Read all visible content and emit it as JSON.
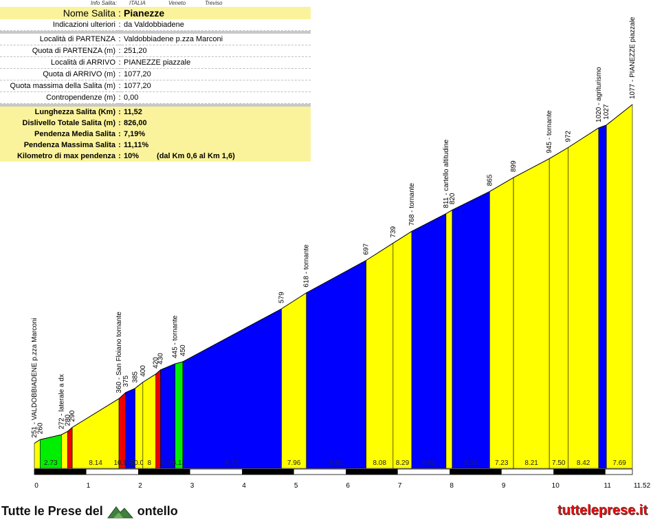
{
  "info_header": {
    "label": "Info Salita:",
    "country": "ITALIA",
    "region": "Veneto",
    "province": "Treviso"
  },
  "info_rows": [
    {
      "label": "Nome Salita",
      "value": "Pianezze",
      "style": "title"
    },
    {
      "label": "Indicazioni ulteriori",
      "value": "da Valdobbiadene",
      "style": "plain"
    },
    {
      "label": "Località di PARTENZA",
      "value": "Valdobbiadene p.zza Marconi",
      "style": "plain"
    },
    {
      "label": "Quota di PARTENZA (m)",
      "value": "251,20",
      "style": "plain"
    },
    {
      "label": "Località di ARRIVO",
      "value": "PIANEZZE piazzale",
      "style": "plain"
    },
    {
      "label": "Quota di ARRIVO (m)",
      "value": "1077,20",
      "style": "plain"
    },
    {
      "label": "Quota massima della Salita (m)",
      "value": "1077,20",
      "style": "plain"
    },
    {
      "label": "Contropendenze (m)",
      "value": "0,00",
      "style": "plain"
    },
    {
      "label": "Lunghezza Salita (Km)",
      "value": "11,52",
      "style": "yellow"
    },
    {
      "label": "Dislivello Totale Salita (m)",
      "value": "826,00",
      "style": "yellow"
    },
    {
      "label": "Pendenza Media Salita",
      "value": "7,19%",
      "style": "yellow"
    },
    {
      "label": "Pendenza Massima Salita",
      "value": "11,11%",
      "style": "yellow"
    },
    {
      "label": "Kilometro di max pendenza",
      "value": "10%",
      "extra": "(dal Km 0,6 al Km 1,6)",
      "style": "yellow"
    }
  ],
  "chart_data": {
    "type": "area",
    "xlabel": "",
    "ylabel": "",
    "xlim": [
      0,
      11.52
    ],
    "x_ticks": [
      "0",
      "1",
      "2",
      "3",
      "4",
      "5",
      "6",
      "7",
      "8",
      "9",
      "10",
      "11",
      "11.52"
    ],
    "slope_colors": {
      "green": "#00ee00",
      "yellow": "#ffff00",
      "blue": "#0000ff",
      "red": "#ee0000"
    },
    "profile": [
      {
        "km": 0.0,
        "alt": 251
      },
      {
        "km": 0.11,
        "alt": 260
      },
      {
        "km": 0.52,
        "alt": 272
      },
      {
        "km": 0.64,
        "alt": 280
      },
      {
        "km": 0.73,
        "alt": 290
      },
      {
        "km": 1.63,
        "alt": 360
      },
      {
        "km": 1.76,
        "alt": 375
      },
      {
        "km": 1.94,
        "alt": 385
      },
      {
        "km": 2.09,
        "alt": 400
      },
      {
        "km": 2.34,
        "alt": 420
      },
      {
        "km": 2.43,
        "alt": 430
      },
      {
        "km": 2.71,
        "alt": 445
      },
      {
        "km": 2.86,
        "alt": 450
      },
      {
        "km": 4.76,
        "alt": 579
      },
      {
        "km": 5.24,
        "alt": 618
      },
      {
        "km": 6.39,
        "alt": 697
      },
      {
        "km": 6.91,
        "alt": 739
      },
      {
        "km": 7.27,
        "alt": 768
      },
      {
        "km": 7.93,
        "alt": 811
      },
      {
        "km": 8.05,
        "alt": 820
      },
      {
        "km": 8.77,
        "alt": 865
      },
      {
        "km": 9.23,
        "alt": 899
      },
      {
        "km": 9.92,
        "alt": 945
      },
      {
        "km": 10.28,
        "alt": 972
      },
      {
        "km": 10.87,
        "alt": 1020
      },
      {
        "km": 11.02,
        "alt": 1027
      },
      {
        "km": 11.52,
        "alt": 1077
      }
    ],
    "segments": [
      {
        "color": "yellow",
        "grade": ""
      },
      {
        "color": "green",
        "grade": "2.73"
      },
      {
        "color": "yellow",
        "grade": ""
      },
      {
        "color": "red",
        "grade": ""
      },
      {
        "color": "yellow",
        "grade": "8.14"
      },
      {
        "color": "red",
        "grade": "10.71"
      },
      {
        "color": "blue",
        "grade": "5.88"
      },
      {
        "color": "yellow",
        "grade": "10.00"
      },
      {
        "color": "yellow",
        "grade": "8"
      },
      {
        "color": "red",
        "grade": ""
      },
      {
        "color": "blue",
        "grade": "5.36"
      },
      {
        "color": "green",
        "grade": "3.13"
      },
      {
        "color": "blue",
        "grade": "6.72"
      },
      {
        "color": "yellow",
        "grade": "7.96"
      },
      {
        "color": "blue",
        "grade": "6.92"
      },
      {
        "color": "yellow",
        "grade": "8.08"
      },
      {
        "color": "yellow",
        "grade": "8.29"
      },
      {
        "color": "blue",
        "grade": "6.62"
      },
      {
        "color": "yellow",
        "grade": ""
      },
      {
        "color": "blue",
        "grade": "6.34"
      },
      {
        "color": "yellow",
        "grade": "7.23"
      },
      {
        "color": "yellow",
        "grade": "8.21"
      },
      {
        "color": "yellow",
        "grade": "7.50"
      },
      {
        "color": "yellow",
        "grade": "8.42"
      },
      {
        "color": "blue",
        "grade": ""
      },
      {
        "color": "yellow",
        "grade": "7.69"
      }
    ],
    "point_labels": [
      "251 - VALDOBBIADENE p.zza Marconi",
      "260",
      "272 - laterale a dx",
      "280",
      "290",
      "360 - San Floiano tornante",
      "375",
      "385",
      "400",
      "420",
      "430",
      "445 - tornante",
      "450",
      "579",
      "618 - tornante",
      "697",
      "739",
      "768 - tornante",
      "811 - cartello altitudine",
      "820",
      "865",
      "899",
      "945 - tornante",
      "972",
      "1020 - agriturismo",
      "1027",
      "1077 - PIANEZZE piazzale"
    ]
  },
  "footer": {
    "brand_left": "Tutte le Prese del",
    "brand_right": "ontello",
    "site": "tutteleprese.it"
  }
}
